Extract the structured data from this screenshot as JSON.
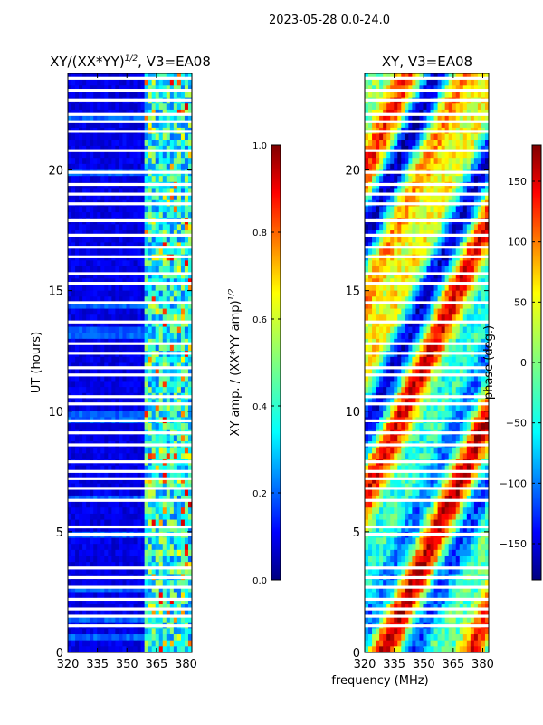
{
  "figure": {
    "suptitle": "2023-05-28 0.0-24.0",
    "xlabel": "frequency (MHz)",
    "ylabel": "UT (hours)"
  },
  "colors": {
    "map": [
      "#00007f",
      "#0000ff",
      "#007fff",
      "#00ffff",
      "#7fff7f",
      "#ffff00",
      "#ff7f00",
      "#ff0000",
      "#7f0000"
    ]
  },
  "chart_data": [
    {
      "type": "heatmap",
      "title_prefix": "XY/(XX*YY)",
      "title_sup": "1/2",
      "title_suffix": ", V3=EA08",
      "x_ticks": [
        "320",
        "335",
        "350",
        "365",
        "380"
      ],
      "x_tick_values": [
        320,
        335,
        350,
        365,
        380
      ],
      "xlim": [
        320,
        383
      ],
      "y_ticks": [
        "0",
        "5",
        "10",
        "15",
        "20"
      ],
      "y_tick_values": [
        0,
        5,
        10,
        15,
        20
      ],
      "ylim": [
        0,
        24
      ],
      "flagged_hours": [
        1.1,
        1.5,
        1.8,
        2.2,
        2.7,
        3.1,
        3.5,
        4.9,
        5.2,
        6.3,
        6.8,
        7.2,
        7.5,
        7.9,
        8.6,
        9.1,
        9.6,
        10.3,
        10.6,
        11.5,
        11.8,
        12.4,
        12.8,
        13.7,
        14.5,
        15.3,
        15.7,
        16.4,
        16.8,
        17.3,
        17.9,
        18.6,
        19.0,
        19.4,
        19.9,
        20.8,
        21.6,
        22.0,
        22.3,
        22.9,
        23.3,
        23.8
      ],
      "colorbar": {
        "label_prefix": "XY amp. / (XX*YY amp)",
        "label_sup": "1/2",
        "ticks": [
          "0.0",
          "0.2",
          "0.4",
          "0.6",
          "0.8",
          "1.0"
        ],
        "tick_values": [
          0.0,
          0.2,
          0.4,
          0.6,
          0.8,
          1.0
        ],
        "range": [
          0.0,
          1.0
        ]
      }
    },
    {
      "type": "heatmap",
      "title": "XY, V3=EA08",
      "x_ticks": [
        "320",
        "335",
        "350",
        "365",
        "380"
      ],
      "x_tick_values": [
        320,
        335,
        350,
        365,
        380
      ],
      "xlim": [
        320,
        383
      ],
      "y_ticks": [
        "0",
        "5",
        "10",
        "15",
        "20"
      ],
      "y_tick_values": [
        0,
        5,
        10,
        15,
        20
      ],
      "ylim": [
        0,
        24
      ],
      "flagged_hours": [
        1.1,
        1.5,
        1.8,
        2.2,
        2.7,
        3.1,
        3.5,
        4.9,
        5.2,
        6.3,
        6.8,
        7.2,
        7.5,
        7.9,
        8.6,
        9.1,
        9.6,
        10.3,
        10.6,
        11.5,
        11.8,
        12.4,
        12.8,
        13.7,
        14.5,
        15.3,
        15.7,
        16.4,
        16.8,
        17.3,
        17.9,
        18.6,
        19.0,
        19.4,
        19.9,
        20.8,
        21.6,
        22.0,
        22.3,
        22.9,
        23.3,
        23.8
      ],
      "colorbar": {
        "label": "phase (deg.)",
        "ticks": [
          "−150",
          "−100",
          "−50",
          "0",
          "50",
          "100",
          "150"
        ],
        "tick_values": [
          -150,
          -100,
          -50,
          0,
          50,
          100,
          150
        ],
        "range": [
          -180,
          180
        ]
      }
    }
  ]
}
